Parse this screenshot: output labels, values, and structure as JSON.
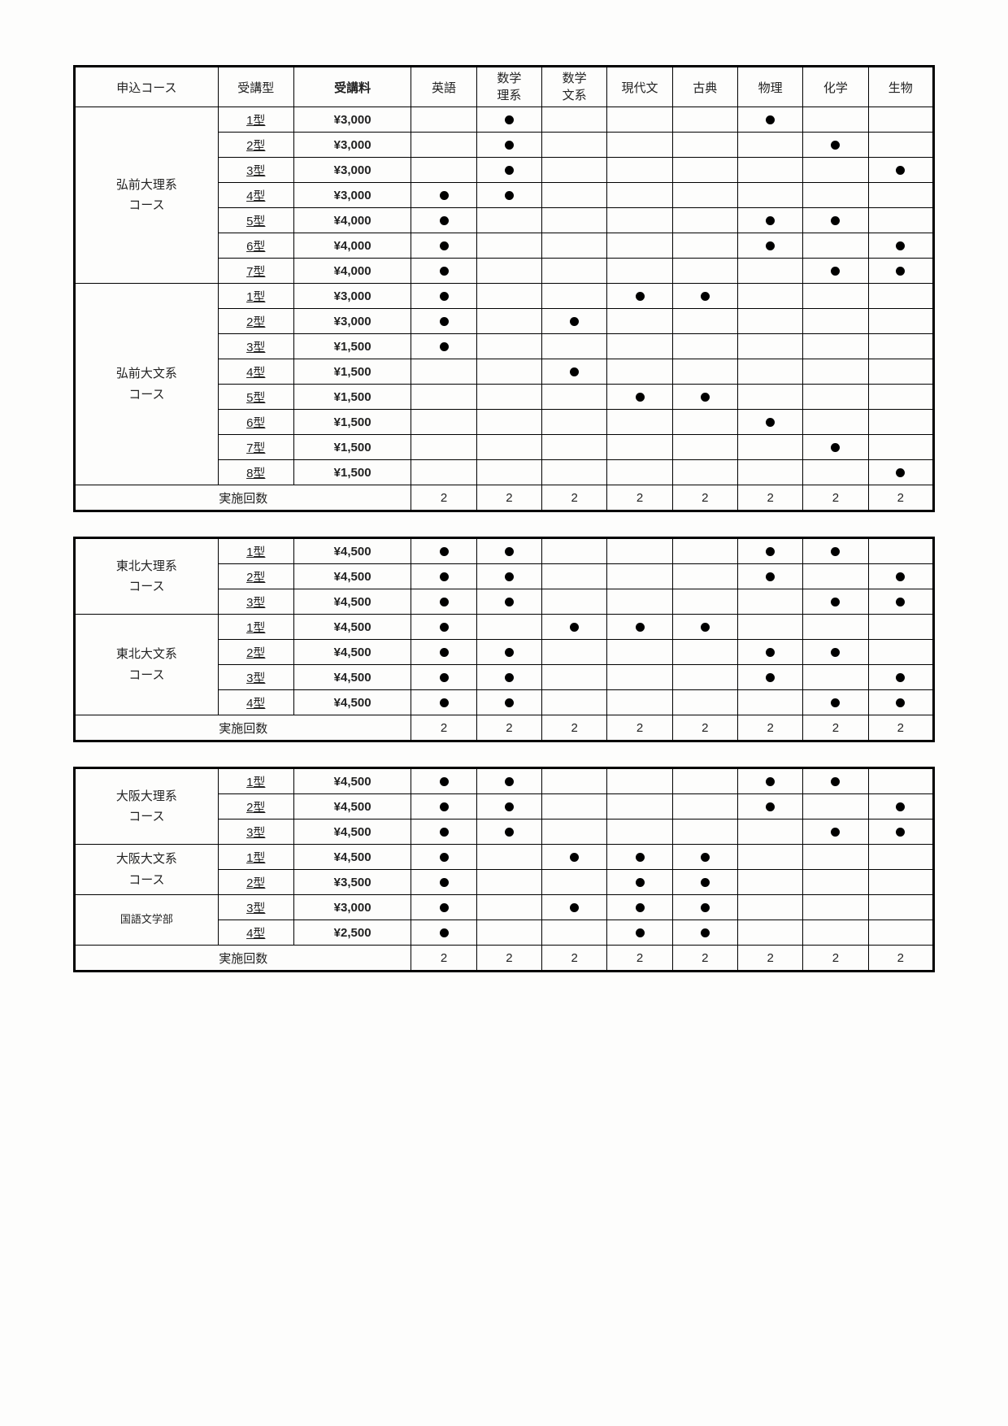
{
  "headers": {
    "course": "申込コース",
    "type": "受講型",
    "fee": "受講料",
    "subjects": [
      "英語",
      "数学\n理系",
      "数学\n文系",
      "現代文",
      "古典",
      "物理",
      "化学",
      "生物"
    ]
  },
  "sessions_label": "実施回数",
  "table1": {
    "groups": [
      {
        "course": "弘前大理系\nコース",
        "rows": [
          {
            "type": "1型",
            "fee": "¥3,000",
            "marks": [
              0,
              1,
              0,
              0,
              0,
              1,
              0,
              0
            ]
          },
          {
            "type": "2型",
            "fee": "¥3,000",
            "marks": [
              0,
              1,
              0,
              0,
              0,
              0,
              1,
              0
            ]
          },
          {
            "type": "3型",
            "fee": "¥3,000",
            "marks": [
              0,
              1,
              0,
              0,
              0,
              0,
              0,
              1
            ]
          },
          {
            "type": "4型",
            "fee": "¥3,000",
            "marks": [
              1,
              1,
              0,
              0,
              0,
              0,
              0,
              0
            ]
          },
          {
            "type": "5型",
            "fee": "¥4,000",
            "marks": [
              1,
              0,
              0,
              0,
              0,
              1,
              1,
              0
            ]
          },
          {
            "type": "6型",
            "fee": "¥4,000",
            "marks": [
              1,
              0,
              0,
              0,
              0,
              1,
              0,
              1
            ]
          },
          {
            "type": "7型",
            "fee": "¥4,000",
            "marks": [
              1,
              0,
              0,
              0,
              0,
              0,
              1,
              1
            ]
          }
        ]
      },
      {
        "course": "弘前大文系\nコース",
        "rows": [
          {
            "type": "1型",
            "fee": "¥3,000",
            "marks": [
              1,
              0,
              0,
              1,
              1,
              0,
              0,
              0
            ]
          },
          {
            "type": "2型",
            "fee": "¥3,000",
            "marks": [
              1,
              0,
              1,
              0,
              0,
              0,
              0,
              0
            ]
          },
          {
            "type": "3型",
            "fee": "¥1,500",
            "marks": [
              1,
              0,
              0,
              0,
              0,
              0,
              0,
              0
            ]
          },
          {
            "type": "4型",
            "fee": "¥1,500",
            "marks": [
              0,
              0,
              1,
              0,
              0,
              0,
              0,
              0
            ]
          },
          {
            "type": "5型",
            "fee": "¥1,500",
            "marks": [
              0,
              0,
              0,
              1,
              1,
              0,
              0,
              0
            ]
          },
          {
            "type": "6型",
            "fee": "¥1,500",
            "marks": [
              0,
              0,
              0,
              0,
              0,
              1,
              0,
              0
            ]
          },
          {
            "type": "7型",
            "fee": "¥1,500",
            "marks": [
              0,
              0,
              0,
              0,
              0,
              0,
              1,
              0
            ]
          },
          {
            "type": "8型",
            "fee": "¥1,500",
            "marks": [
              0,
              0,
              0,
              0,
              0,
              0,
              0,
              1
            ]
          }
        ]
      }
    ],
    "sessions": [
      "2",
      "2",
      "2",
      "2",
      "2",
      "2",
      "2",
      "2"
    ]
  },
  "table2": {
    "groups": [
      {
        "course": "東北大理系\nコース",
        "rows": [
          {
            "type": "1型",
            "fee": "¥4,500",
            "marks": [
              1,
              1,
              0,
              0,
              0,
              1,
              1,
              0
            ]
          },
          {
            "type": "2型",
            "fee": "¥4,500",
            "marks": [
              1,
              1,
              0,
              0,
              0,
              1,
              0,
              1
            ]
          },
          {
            "type": "3型",
            "fee": "¥4,500",
            "marks": [
              1,
              1,
              0,
              0,
              0,
              0,
              1,
              1
            ]
          }
        ]
      },
      {
        "course": "東北大文系\nコース",
        "rows": [
          {
            "type": "1型",
            "fee": "¥4,500",
            "marks": [
              1,
              0,
              1,
              1,
              1,
              0,
              0,
              0
            ]
          },
          {
            "type": "2型",
            "fee": "¥4,500",
            "marks": [
              1,
              1,
              0,
              0,
              0,
              1,
              1,
              0
            ]
          },
          {
            "type": "3型",
            "fee": "¥4,500",
            "marks": [
              1,
              1,
              0,
              0,
              0,
              1,
              0,
              1
            ]
          },
          {
            "type": "4型",
            "fee": "¥4,500",
            "marks": [
              1,
              1,
              0,
              0,
              0,
              0,
              1,
              1
            ]
          }
        ]
      }
    ],
    "sessions": [
      "2",
      "2",
      "2",
      "2",
      "2",
      "2",
      "2",
      "2"
    ]
  },
  "table3": {
    "groups": [
      {
        "course": "大阪大理系\nコース",
        "rows": [
          {
            "type": "1型",
            "fee": "¥4,500",
            "marks": [
              1,
              1,
              0,
              0,
              0,
              1,
              1,
              0
            ]
          },
          {
            "type": "2型",
            "fee": "¥4,500",
            "marks": [
              1,
              1,
              0,
              0,
              0,
              1,
              0,
              1
            ]
          },
          {
            "type": "3型",
            "fee": "¥4,500",
            "marks": [
              1,
              1,
              0,
              0,
              0,
              0,
              1,
              1
            ]
          }
        ]
      },
      {
        "course": "大阪大文系\nコース",
        "rows": [
          {
            "type": "1型",
            "fee": "¥4,500",
            "marks": [
              1,
              0,
              1,
              1,
              1,
              0,
              0,
              0
            ]
          },
          {
            "type": "2型",
            "fee": "¥3,500",
            "marks": [
              1,
              0,
              0,
              1,
              1,
              0,
              0,
              0
            ]
          }
        ]
      },
      {
        "course": "国語文学部",
        "course_small": true,
        "rows": [
          {
            "type": "3型",
            "fee": "¥3,000",
            "marks": [
              1,
              0,
              1,
              1,
              1,
              0,
              0,
              0
            ]
          },
          {
            "type": "4型",
            "fee": "¥2,500",
            "marks": [
              1,
              0,
              0,
              1,
              1,
              0,
              0,
              0
            ]
          }
        ]
      }
    ],
    "sessions": [
      "2",
      "2",
      "2",
      "2",
      "2",
      "2",
      "2",
      "2"
    ]
  }
}
